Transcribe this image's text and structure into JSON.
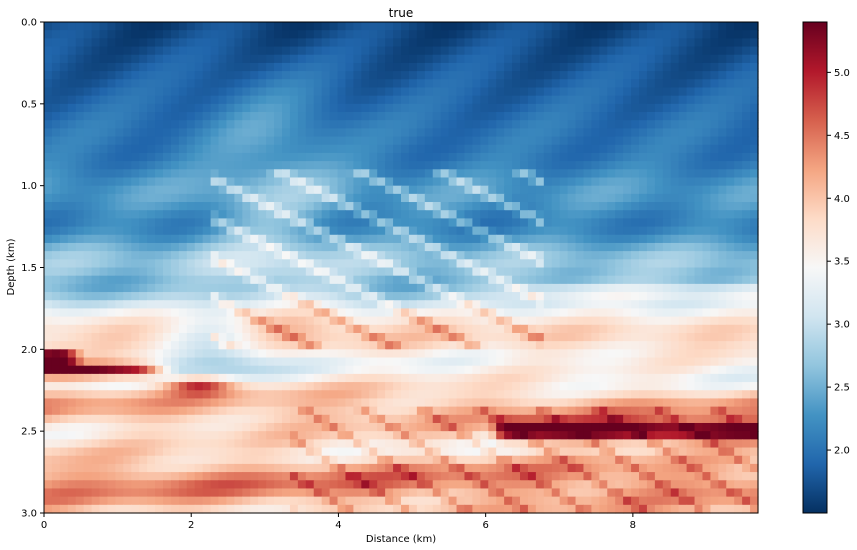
{
  "chart_data": {
    "type": "heatmap",
    "title": "true",
    "xlabel": "Distance (km)",
    "ylabel": "Depth (km)",
    "xlim": [
      0,
      9.7
    ],
    "ylim": [
      3.0,
      0.0
    ],
    "xticks": [
      "0",
      "2",
      "4",
      "6",
      "8"
    ],
    "yticks": [
      "0.0",
      "0.5",
      "1.0",
      "1.5",
      "2.0",
      "2.5",
      "3.0"
    ],
    "colorbar": {
      "min": 1.5,
      "max": 5.4,
      "ticks": [
        "2.0",
        "2.5",
        "3.0",
        "3.5",
        "4.0",
        "4.5",
        "5.0"
      ],
      "colormap": "RdBu_r"
    },
    "grid": false,
    "note_values": "velocity field, km/s; layered background with dipping layers between x≈2.5–6.5 km"
  }
}
